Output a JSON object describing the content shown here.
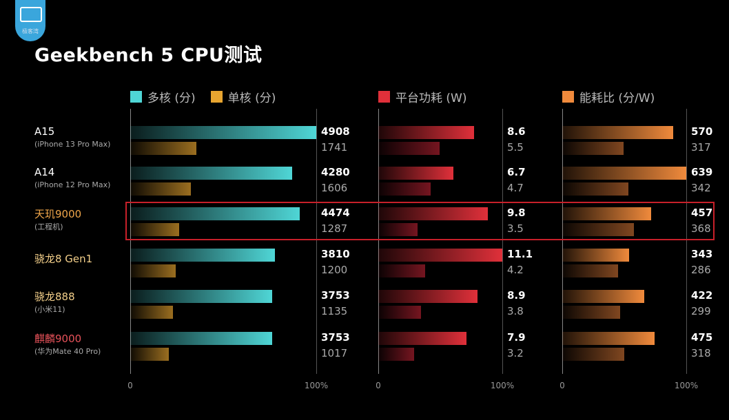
{
  "logo": {
    "text": "极客湾"
  },
  "title": "Geekbench 5 CPU测试",
  "chart_data": {
    "type": "bar",
    "title": "Geekbench 5 CPU测试",
    "orientation": "horizontal",
    "categories": [
      {
        "name": "A15",
        "sub": "(iPhone 13 Pro Max)",
        "color": "#ffffff"
      },
      {
        "name": "A14",
        "sub": "(iPhone 12 Pro Max)",
        "color": "#ffffff"
      },
      {
        "name": "天玑9000",
        "sub": "(工程机)",
        "color": "#f0a64a"
      },
      {
        "name": "骁龙8 Gen1",
        "sub": "",
        "color": "#f3cf8a"
      },
      {
        "name": "骁龙888",
        "sub": "(小米11)",
        "color": "#f3cf8a"
      },
      {
        "name": "麒麟9000",
        "sub": "(华为Mate 40 Pro)",
        "color": "#e8525a"
      }
    ],
    "highlighted_category": "天玑9000",
    "panels": [
      {
        "legend": [
          {
            "name": "多核 (分)",
            "color": "#4fd6d6"
          },
          {
            "name": "单核 (分)",
            "color": "#e8a530"
          }
        ],
        "series": [
          {
            "name": "多核 (分)",
            "color": "#4fd6d6",
            "values": [
              4908,
              4280,
              4474,
              3810,
              3753,
              3753
            ],
            "labels": [
              "4908",
              "4280",
              "4474",
              "3810",
              "3753",
              "3753"
            ]
          },
          {
            "name": "单核 (分)",
            "color": "#e8a530",
            "values": [
              1741,
              1606,
              1287,
              1200,
              1135,
              1017
            ],
            "labels": [
              "1741",
              "1606",
              "1287",
              "1200",
              "1135",
              "1017"
            ]
          }
        ],
        "max": 4908,
        "ticks": [
          "0",
          "100%"
        ]
      },
      {
        "legend": [
          {
            "name": "平台功耗 (W)",
            "color": "#e0303a"
          }
        ],
        "series": [
          {
            "name": "平台功耗 (W)",
            "color": "#e0303a",
            "values": [
              8.6,
              6.7,
              9.8,
              11.1,
              8.9,
              7.9
            ],
            "labels": [
              "8.6",
              "6.7",
              "9.8",
              "11.1",
              "8.9",
              "7.9"
            ]
          },
          {
            "name": "",
            "color": "#b02030",
            "values": [
              5.5,
              4.7,
              3.5,
              4.2,
              3.8,
              3.2
            ],
            "labels": [
              "5.5",
              "4.7",
              "3.5",
              "4.2",
              "3.8",
              "3.2"
            ]
          }
        ],
        "max": 11.1,
        "ticks": [
          "0",
          "100%"
        ]
      },
      {
        "legend": [
          {
            "name": "能耗比 (分/W)",
            "color": "#f08a3c"
          }
        ],
        "series": [
          {
            "name": "能耗比 (分/W)",
            "color": "#f08a3c",
            "values": [
              570,
              639,
              457,
              343,
              422,
              475
            ],
            "labels": [
              "570",
              "639",
              "457",
              "343",
              "422",
              "475"
            ]
          },
          {
            "name": "",
            "color": "#c06a30",
            "values": [
              317,
              342,
              368,
              286,
              299,
              318
            ],
            "labels": [
              "317",
              "342",
              "368",
              "286",
              "299",
              "318"
            ]
          }
        ],
        "max": 639,
        "ticks": [
          "0",
          "100%"
        ]
      }
    ]
  }
}
